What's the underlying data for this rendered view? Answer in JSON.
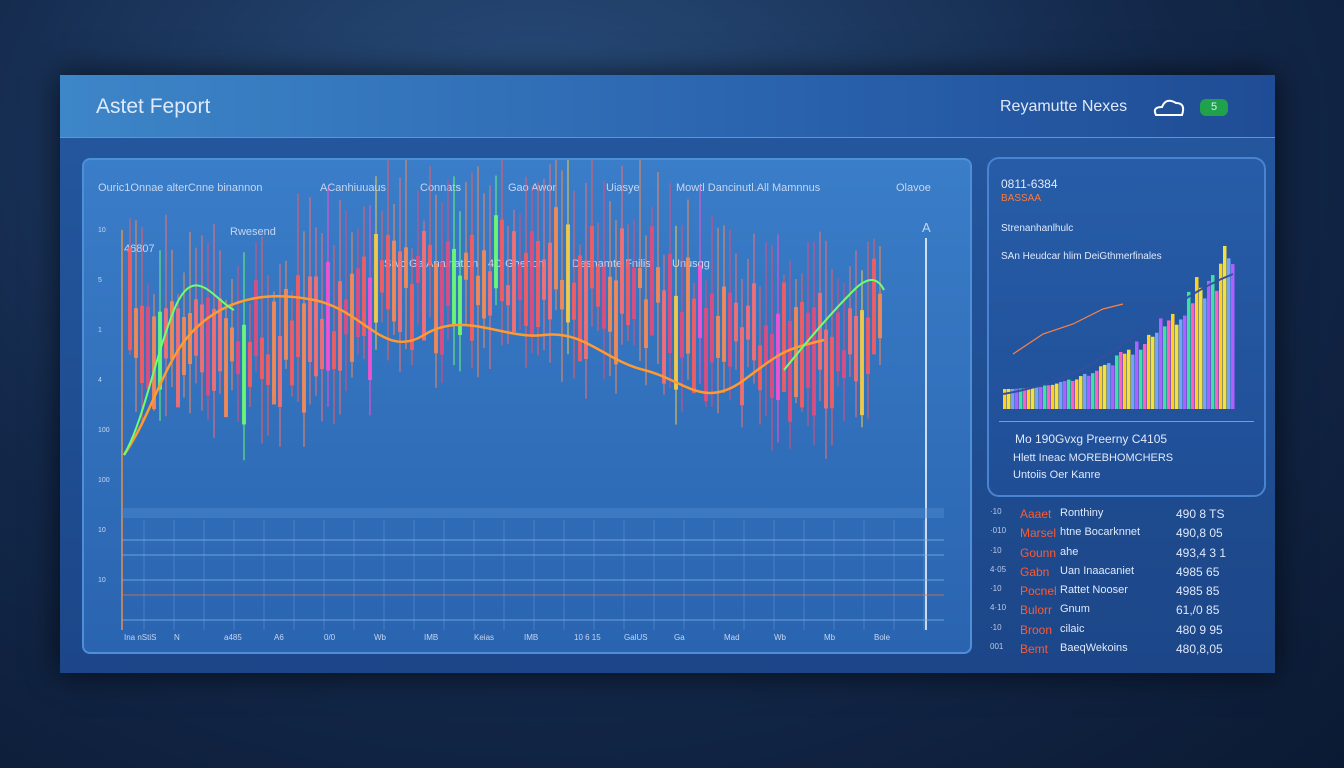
{
  "header": {
    "title": "Astet Feport",
    "right": "Reyamutte Nexes",
    "badge": "5"
  },
  "main": {
    "columns": [
      "Ouric1Onnae  alterCnne binannon",
      "ACanhiuuaus",
      "Connats",
      "Gao Awor",
      "Uiasye",
      "Mowtl Dancinutl.All Mamnnus",
      "Olavoe"
    ],
    "labels": [
      "46807",
      "Rwesend",
      "Srvc Ga Anaination",
      "4D Ghenon",
      "Desnamte Fnilis",
      "Unusgg",
      "A"
    ],
    "y_labels": [
      "10",
      "5",
      "1",
      "4",
      "100",
      "100",
      "10",
      "10"
    ],
    "x_labels": [
      "Ina nStiS",
      "N",
      "a485",
      "A6",
      "0/0",
      "Wb",
      "IMB",
      "Keias",
      "IMB",
      "10 6 15",
      "GalUS",
      "Ga",
      "Mad",
      "Wb",
      "Mb",
      "Bole"
    ]
  },
  "side": {
    "code": "0811-6384",
    "sub": "BASSAA",
    "line1": "Strenanhanlhulc",
    "line2": "SAn Heudcar hlim DeiGthmerfinales",
    "info": [
      "Mo 190Gvxg  Preerny C4105",
      "Hlett Ineac  MOREBHOMCHERS",
      "Untoiis Oer Kanre"
    ]
  },
  "list": {
    "rows": [
      [
        "·10",
        "Aaaet",
        "Ronthiny",
        "490 8 TS"
      ],
      [
        "·010",
        "Marsel",
        "htne Bocarknnet",
        "490,8 05"
      ],
      [
        "·10",
        "Gounn",
        "ahe",
        "493,4 3 1"
      ],
      [
        "4·05",
        "Gabn",
        "Uan Inaacaniet",
        "4985 65"
      ],
      [
        "·10",
        "Pocnel",
        "Rattet Nooser",
        "4985 85"
      ],
      [
        "4·10",
        "Bulorr",
        "Gnum",
        "61,/0 85"
      ],
      [
        "·10",
        "Broon",
        "cilaic",
        "480 9 95"
      ],
      [
        "001",
        "Bemt",
        "BaeqWekoins",
        "480,8,05"
      ]
    ]
  }
}
